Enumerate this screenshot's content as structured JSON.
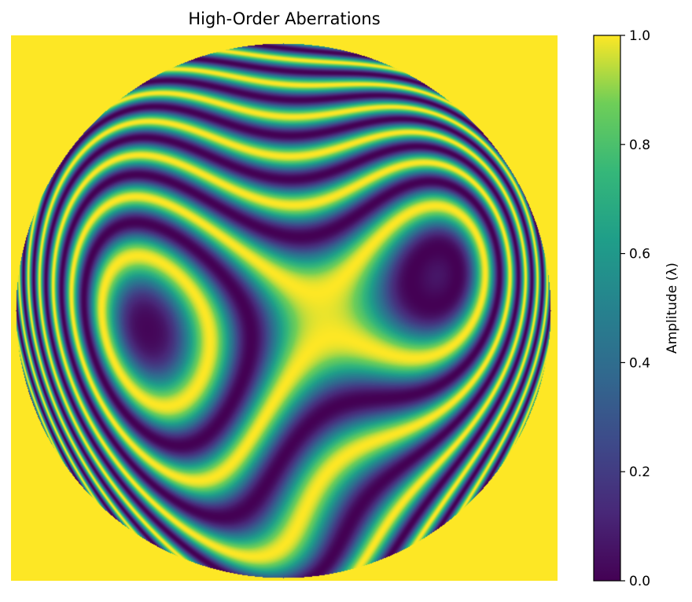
{
  "chart_data": {
    "type": "heatmap",
    "title": "High-Order Aberrations",
    "xlabel": "",
    "ylabel": "",
    "axes_visible": false,
    "colormap": "viridis",
    "region": "circular pupil",
    "fill_outside_value": 1.0,
    "colorbar": {
      "label": "Amplitude (λ)",
      "range": [
        0.0,
        1.0
      ],
      "ticks": [
        0.0,
        0.2,
        0.4,
        0.6,
        0.8,
        1.0
      ],
      "tick_labels": [
        "0.0",
        "0.2",
        "0.4",
        "0.6",
        "0.8",
        "1.0"
      ]
    }
  }
}
